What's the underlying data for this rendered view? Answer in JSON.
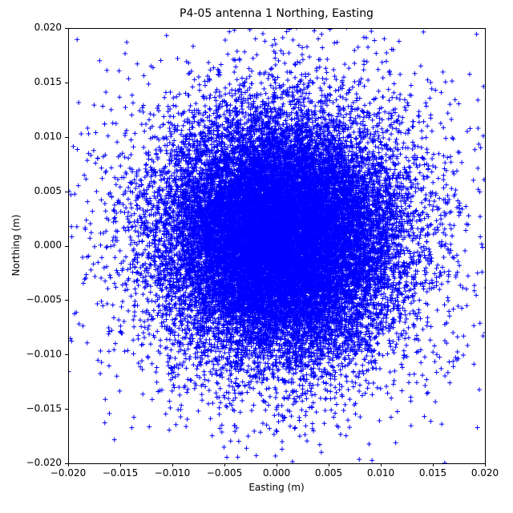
{
  "chart_data": {
    "type": "scatter",
    "title": "P4-05 antenna 1 Northing, Easting",
    "xlabel": "Easting (m)",
    "ylabel": "Northing (m)",
    "xlim": [
      -0.02,
      0.02
    ],
    "ylim": [
      -0.02,
      0.02
    ],
    "xticks": [
      -0.02,
      -0.015,
      -0.01,
      -0.005,
      0.0,
      0.005,
      0.01,
      0.015,
      0.02
    ],
    "yticks": [
      -0.02,
      -0.015,
      -0.01,
      -0.005,
      0.0,
      0.005,
      0.01,
      0.015,
      0.02
    ],
    "xtick_labels": [
      "−0.020",
      "−0.015",
      "−0.010",
      "−0.005",
      "0.000",
      "0.005",
      "0.010",
      "0.015",
      "0.020"
    ],
    "ytick_labels": [
      "−0.020",
      "−0.015",
      "−0.010",
      "−0.005",
      "0.000",
      "0.005",
      "0.010",
      "0.015",
      "0.020"
    ],
    "grid": false,
    "legend": null,
    "marker": {
      "symbol": "+",
      "color": "#0000ff",
      "size": 6,
      "line_width": 1
    },
    "distribution": {
      "description": "Dense isotropic Gaussian-like cloud of GPS position scatter centered near the origin, saturated solid blue within ~0.009 m radius, sparse tail points reaching the axis limits",
      "seed": 1337,
      "components": [
        {
          "n": 21000,
          "center": [
            0.0003,
            0.0008
          ],
          "sigma": [
            0.0056,
            0.0054
          ]
        },
        {
          "n": 2800,
          "center": [
            0.0003,
            0.0008
          ],
          "sigma": [
            0.0092,
            0.009
          ]
        }
      ]
    },
    "axes": {
      "background": "#ffffff",
      "spine_color": "#000000",
      "tick_color": "#000000",
      "tick_label_fontsize": 12,
      "ticks_direction": "out"
    }
  }
}
